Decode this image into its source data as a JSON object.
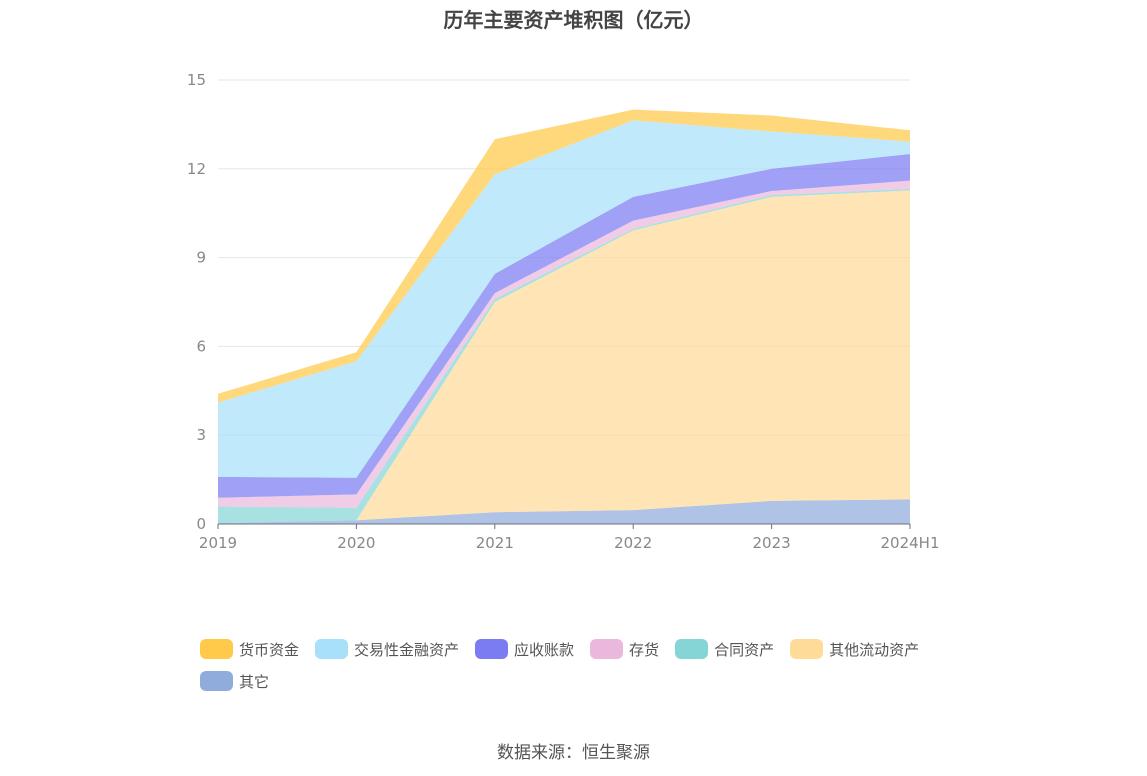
{
  "title": "历年主要资产堆积图（亿元）",
  "source": "数据来源：恒生聚源",
  "chart_data": {
    "type": "area",
    "stacked": true,
    "categories": [
      "2019",
      "2020",
      "2021",
      "2022",
      "2023",
      "2024H1"
    ],
    "ylim": [
      0,
      15
    ],
    "yticks": [
      "0",
      "3",
      "6",
      "9",
      "12",
      "15"
    ],
    "grid": true,
    "legend_position": "bottom",
    "series": [
      {
        "name": "其它",
        "color": "#8FACDC",
        "values": [
          0.03,
          0.13,
          0.4,
          0.47,
          0.78,
          0.83
        ]
      },
      {
        "name": "其他流动资产",
        "color": "#FFDB9A",
        "values": [
          0.0,
          0.0,
          7.1,
          9.45,
          10.27,
          10.44
        ]
      },
      {
        "name": "合同资产",
        "color": "#85D5D7",
        "values": [
          0.56,
          0.42,
          0.1,
          0.05,
          0.06,
          0.05
        ]
      },
      {
        "name": "存货",
        "color": "#EBB8DD",
        "values": [
          0.3,
          0.45,
          0.2,
          0.28,
          0.14,
          0.28
        ]
      },
      {
        "name": "应收账款",
        "color": "#7B7CF2",
        "values": [
          0.7,
          0.56,
          0.65,
          0.8,
          0.75,
          0.9
        ]
      },
      {
        "name": "交易性金融资产",
        "color": "#A8E0FA",
        "values": [
          2.51,
          3.94,
          3.36,
          2.59,
          1.26,
          0.42
        ]
      },
      {
        "name": "货币资金",
        "color": "#FFC94A",
        "values": [
          0.3,
          0.3,
          1.19,
          0.36,
          0.54,
          0.38
        ]
      }
    ]
  },
  "legend_items": [
    {
      "label": "货币资金",
      "color": "#FFC94A"
    },
    {
      "label": "交易性金融资产",
      "color": "#A8E0FA"
    },
    {
      "label": "应收账款",
      "color": "#7B7CF2"
    },
    {
      "label": "存货",
      "color": "#EBB8DD"
    },
    {
      "label": "合同资产",
      "color": "#85D5D7"
    },
    {
      "label": "其他流动资产",
      "color": "#FFDB9A"
    },
    {
      "label": "其它",
      "color": "#8FACDC"
    }
  ]
}
